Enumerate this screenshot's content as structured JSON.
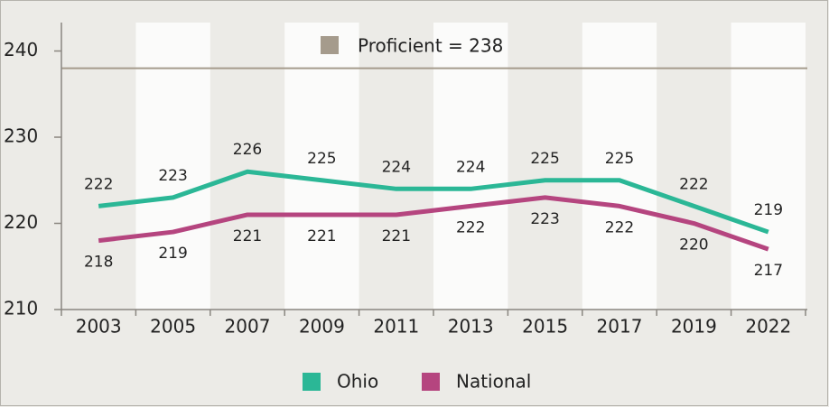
{
  "chart_data": {
    "type": "line",
    "categories": [
      "2003",
      "2005",
      "2007",
      "2009",
      "2011",
      "2013",
      "2015",
      "2017",
      "2019",
      "2022"
    ],
    "series": [
      {
        "name": "Ohio",
        "color": "#2bb796",
        "values": [
          222,
          223,
          226,
          225,
          224,
          224,
          225,
          225,
          222,
          219
        ]
      },
      {
        "name": "National",
        "color": "#b5457f",
        "values": [
          218,
          219,
          221,
          221,
          221,
          222,
          223,
          222,
          220,
          217
        ]
      }
    ],
    "reference": {
      "label": "Proficient = 238",
      "value": 238,
      "color": "#a59b8c"
    },
    "ylim": [
      210,
      243.3
    ],
    "yticks": [
      210,
      220,
      230,
      240
    ],
    "legend": "bottom"
  }
}
